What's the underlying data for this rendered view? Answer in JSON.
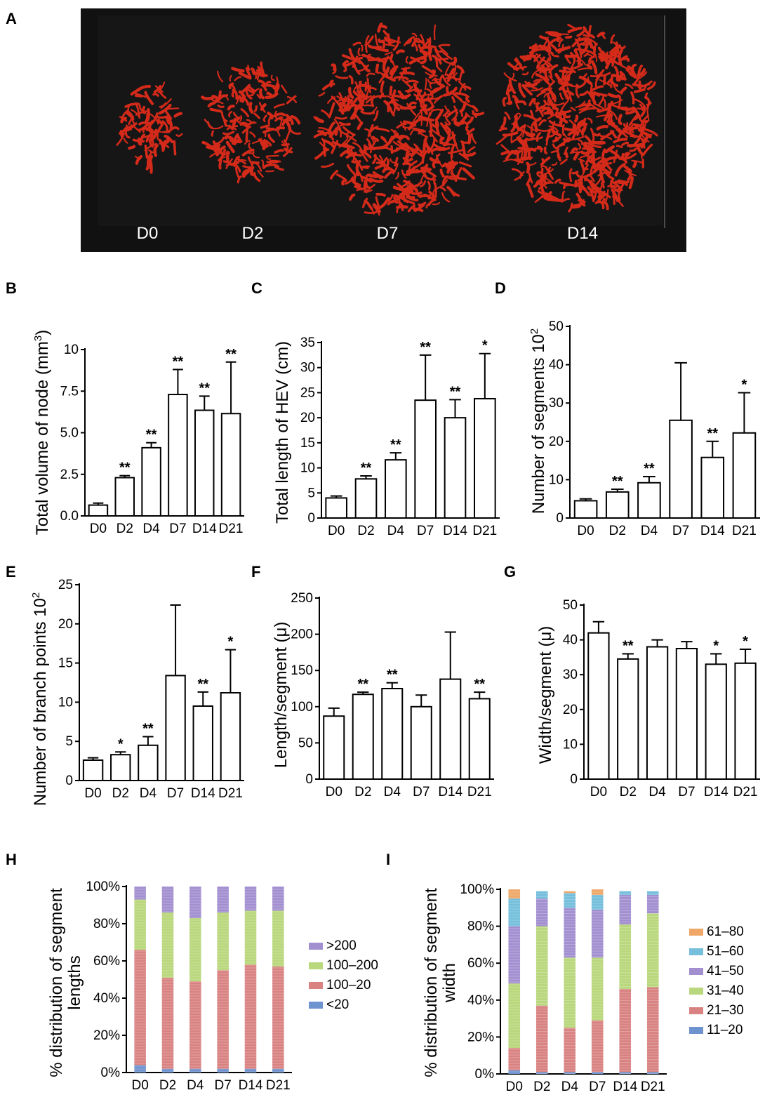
{
  "panel_a": {
    "letter": "A",
    "days": [
      "D0",
      "D2",
      "D7",
      "D14"
    ],
    "vessel_color": "#d42a1a",
    "background": "#111111"
  },
  "chart_data": [
    {
      "id": "B",
      "type": "bar",
      "letter": "B",
      "ylabel": "Total volume of node (mm3)",
      "ylabel_main": "Total volume of node (mm",
      "ylabel_sup": "3",
      "ylabel_end": ")",
      "categories": [
        "D0",
        "D2",
        "D4",
        "D7",
        "D14",
        "D21"
      ],
      "values": [
        0.65,
        2.3,
        4.1,
        7.3,
        6.35,
        6.15
      ],
      "errors": [
        0.12,
        0.12,
        0.3,
        1.5,
        0.85,
        3.1
      ],
      "significance": [
        "",
        "**",
        "**",
        "**",
        "**",
        "**"
      ],
      "ylim": [
        0,
        10
      ],
      "yticks": [
        0,
        2.5,
        5,
        7.5,
        10
      ],
      "ytick_labels": [
        "0.0",
        "2.5",
        "5.0",
        "7.5",
        "10"
      ]
    },
    {
      "id": "C",
      "type": "bar",
      "letter": "C",
      "ylabel": "Total length of HEV (cm)",
      "categories": [
        "D0",
        "D2",
        "D4",
        "D7",
        "D14",
        "D21"
      ],
      "values": [
        4.0,
        7.8,
        11.6,
        23.5,
        20.0,
        23.8
      ],
      "errors": [
        0.4,
        0.6,
        1.4,
        9.0,
        3.6,
        9.0
      ],
      "significance": [
        "",
        "**",
        "**",
        "**",
        "**",
        "*"
      ],
      "ylim": [
        0,
        35
      ],
      "yticks": [
        0,
        5,
        10,
        15,
        20,
        25,
        30,
        35
      ],
      "ytick_labels": [
        "0",
        "5",
        "10",
        "15",
        "20",
        "25",
        "30",
        "35"
      ]
    },
    {
      "id": "D",
      "type": "bar",
      "letter": "D",
      "ylabel": "Number of segments 10 2",
      "ylabel_main": "Number of segments 10",
      "ylabel_sup": "2",
      "ylabel_end": "",
      "categories": [
        "D0",
        "D2",
        "D4",
        "D7",
        "D14",
        "D21"
      ],
      "values": [
        4.5,
        6.8,
        9.2,
        25.5,
        15.8,
        22.2
      ],
      "errors": [
        0.5,
        0.7,
        1.6,
        15.0,
        4.2,
        10.5
      ],
      "significance": [
        "",
        "**",
        "**",
        "",
        "**",
        "*"
      ],
      "ylim": [
        0,
        50
      ],
      "yticks": [
        0,
        10,
        20,
        30,
        40,
        50
      ],
      "ytick_labels": [
        "0",
        "10",
        "20",
        "30",
        "40",
        "50"
      ]
    },
    {
      "id": "E",
      "type": "bar",
      "letter": "E",
      "ylabel": "Number of branch points 10 2",
      "ylabel_main": "Number of branch points 10",
      "ylabel_sup": "2",
      "ylabel_end": "",
      "categories": [
        "D0",
        "D2",
        "D4",
        "D7",
        "D14",
        "D21"
      ],
      "values": [
        2.6,
        3.3,
        4.5,
        13.4,
        9.5,
        11.2
      ],
      "errors": [
        0.3,
        0.35,
        1.1,
        9.0,
        1.8,
        5.5
      ],
      "significance": [
        "",
        "*",
        "**",
        "",
        "**",
        "*"
      ],
      "ylim": [
        0,
        25
      ],
      "yticks": [
        0,
        5,
        10,
        15,
        20,
        25
      ],
      "ytick_labels": [
        "0",
        "5",
        "10",
        "15",
        "20",
        "25"
      ]
    },
    {
      "id": "F",
      "type": "bar",
      "letter": "F",
      "ylabel": "Length/segment (μ)",
      "categories": [
        "D0",
        "D2",
        "D4",
        "D7",
        "D14",
        "D21"
      ],
      "values": [
        87,
        117,
        125,
        100,
        138,
        111
      ],
      "errors": [
        11,
        3,
        8,
        16,
        65,
        9
      ],
      "significance": [
        "",
        "**",
        "**",
        "",
        "",
        "**"
      ],
      "ylim": [
        0,
        250
      ],
      "yticks": [
        0,
        50,
        100,
        150,
        200,
        250
      ],
      "ytick_labels": [
        "0",
        "50",
        "100",
        "150",
        "200",
        "250"
      ]
    },
    {
      "id": "G",
      "type": "bar",
      "letter": "G",
      "ylabel": "Width/segment (μ)",
      "categories": [
        "D0",
        "D2",
        "D4",
        "D7",
        "D14",
        "D21"
      ],
      "values": [
        42,
        34.5,
        38,
        37.5,
        33,
        33.3
      ],
      "errors": [
        3.2,
        1.5,
        2,
        2,
        3,
        4
      ],
      "significance": [
        "",
        "**",
        "",
        "",
        "*",
        "*"
      ],
      "ylim": [
        0,
        50
      ],
      "yticks": [
        0,
        10,
        20,
        30,
        40,
        50
      ],
      "ytick_labels": [
        "0",
        "10",
        "20",
        "30",
        "40",
        "50"
      ]
    },
    {
      "id": "H",
      "type": "stacked-bar",
      "letter": "H",
      "ylabel_lines": [
        "% distribution of segment",
        "lengths"
      ],
      "categories": [
        "D0",
        "D2",
        "D4",
        "D7",
        "D14",
        "D21"
      ],
      "series": [
        {
          "name": "<20",
          "color": "#6f93cf",
          "values": [
            4,
            2,
            2,
            2,
            2,
            2
          ]
        },
        {
          "name": "100–20",
          "color": "#d98282",
          "values": [
            62,
            49,
            47,
            53,
            56,
            55
          ]
        },
        {
          "name": "100–200",
          "color": "#b9d77c",
          "values": [
            27,
            35,
            34,
            31,
            29,
            30
          ]
        },
        {
          "name": ">200",
          "color": "#a28fd0",
          "values": [
            7,
            14,
            17,
            14,
            13,
            13
          ]
        }
      ],
      "legend_order": [
        ">200",
        "100–200",
        "100–20",
        "<20"
      ],
      "ylim": [
        0,
        100
      ],
      "yticks": [
        0,
        20,
        40,
        60,
        80,
        100
      ],
      "ytick_labels": [
        "0%",
        "20%",
        "40%",
        "60%",
        "80%",
        "100%"
      ]
    },
    {
      "id": "I",
      "type": "stacked-bar",
      "letter": "I",
      "ylabel_lines": [
        "% distribution of segment",
        "width"
      ],
      "categories": [
        "D0",
        "D2",
        "D4",
        "D7",
        "D14",
        "D21"
      ],
      "series": [
        {
          "name": "11–20",
          "color": "#6f93cf",
          "values": [
            2,
            1,
            1,
            1,
            1,
            1
          ]
        },
        {
          "name": "21–30",
          "color": "#d98282",
          "values": [
            12,
            36,
            24,
            28,
            45,
            46
          ]
        },
        {
          "name": "31–40",
          "color": "#b9d77c",
          "values": [
            35,
            43,
            38,
            34,
            35,
            40
          ]
        },
        {
          "name": "41–50",
          "color": "#a28fd0",
          "values": [
            31,
            15,
            27,
            26,
            16,
            10
          ]
        },
        {
          "name": "51–60",
          "color": "#75bfdc",
          "values": [
            15,
            4,
            8,
            8,
            2,
            2
          ]
        },
        {
          "name": "61–80",
          "color": "#eea767",
          "values": [
            5,
            0,
            1,
            3,
            0,
            0
          ]
        }
      ],
      "legend_order": [
        "61–80",
        "51–60",
        "41–50",
        "31–40",
        "21–30",
        "11–20"
      ],
      "ylim": [
        0,
        100
      ],
      "yticks": [
        0,
        20,
        40,
        60,
        80,
        100
      ],
      "ytick_labels": [
        "0%",
        "20%",
        "40%",
        "60%",
        "80%",
        "100%"
      ]
    }
  ]
}
